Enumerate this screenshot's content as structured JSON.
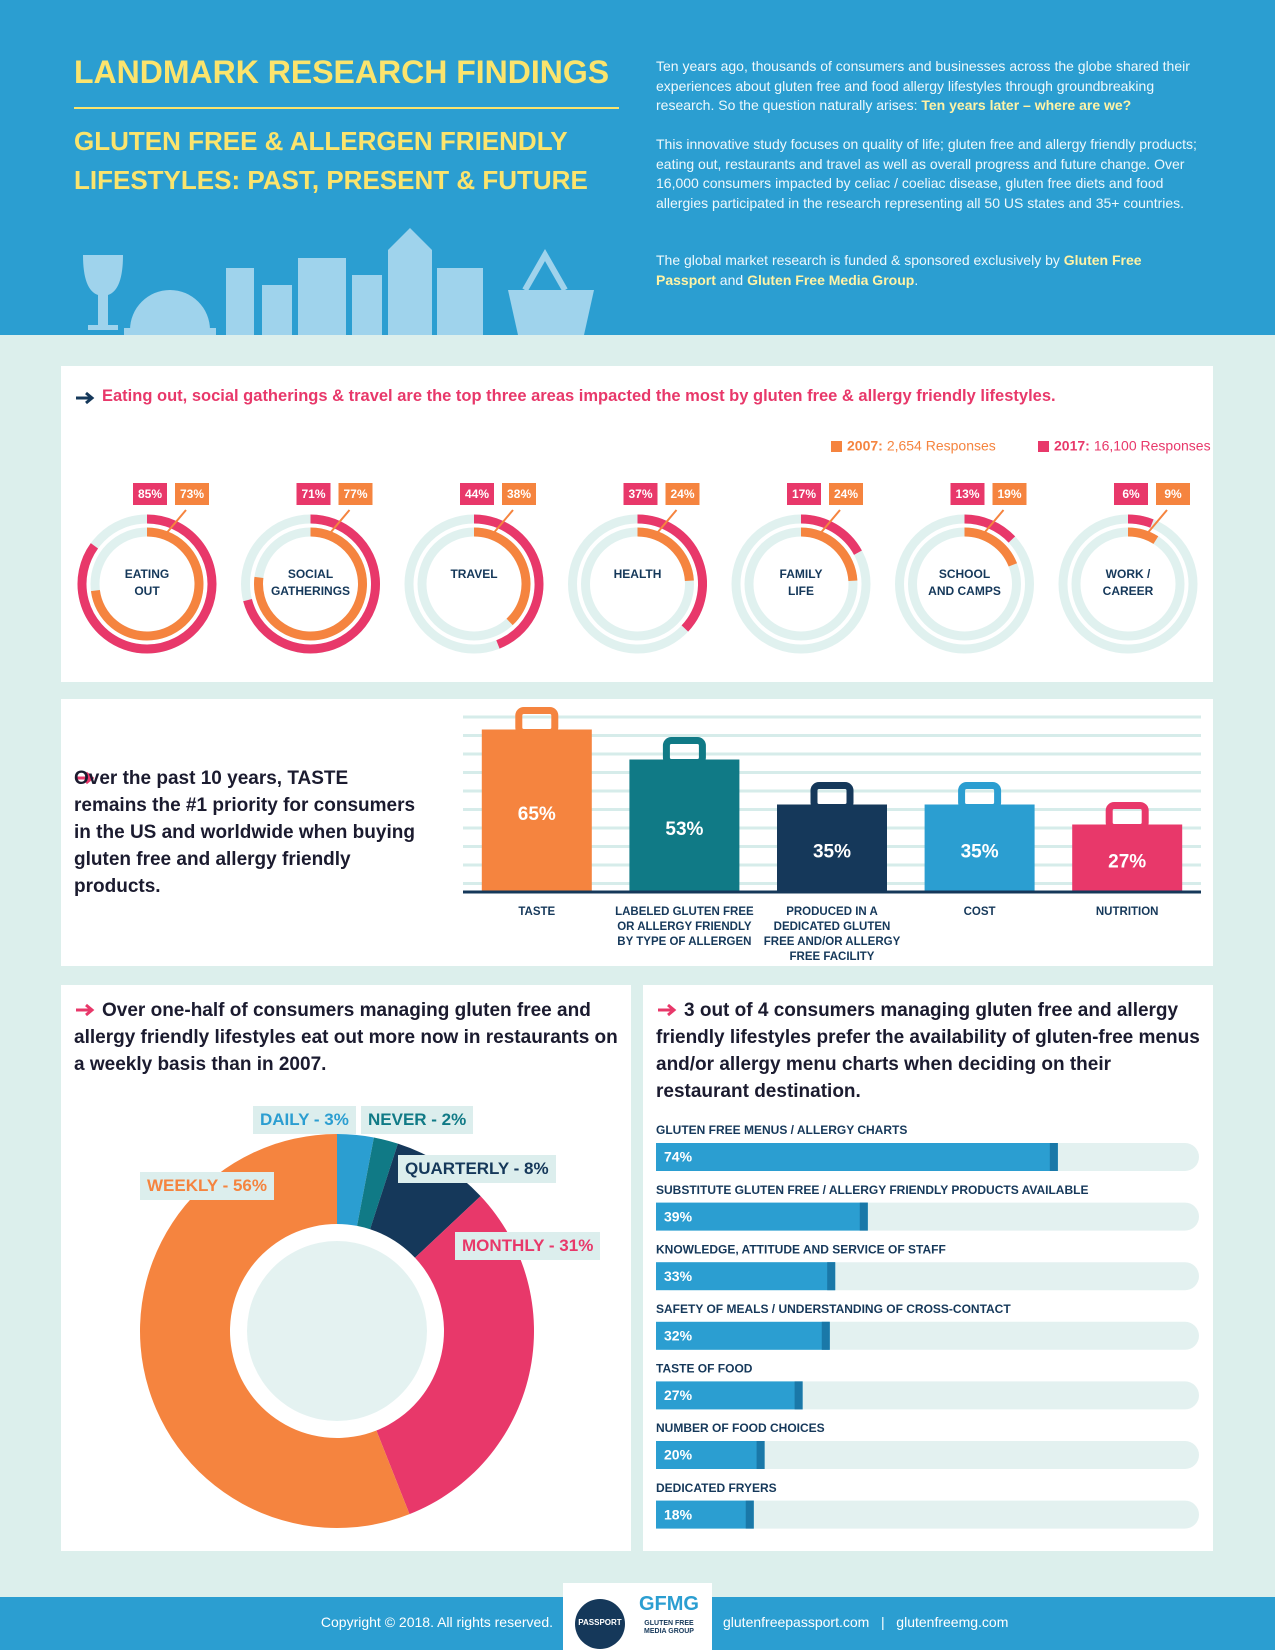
{
  "header": {
    "title": "LANDMARK RESEARCH FINDINGS",
    "subtitle": "GLUTEN FREE & ALLERGEN FRIENDLY LIFESTYLES: PAST, PRESENT & FUTURE",
    "paragraphs": [
      [
        "Ten years ago, thousands of consumers and businesses across the globe shared their experiences about gluten free and food allergy lifestyles through groundbreaking research. So the question naturally arises: ",
        "Ten years later – where are we?"
      ],
      [
        "This innovative study focuses on quality of life; gluten free and allergy friendly products; eating out, restaurants and travel as well as overall progress and future change. Over 16,000 consumers impacted by celiac / coeliac disease, gluten free diets and food allergies participated in the research representing all 50 US states and 35+ countries."
      ],
      [
        "The global market research is funded & sponsored exclusively by ",
        "Gluten Free Passport",
        " and ",
        "Gluten Free Media Group",
        "."
      ]
    ]
  },
  "chart_data": [
    {
      "type": "radial",
      "title": "Eating out, social gatherings & travel are the top three areas impacted the most by gluten free & allergy friendly lifestyles.",
      "categories": [
        "EATING\nOUT",
        "SOCIAL\nGATHERINGS",
        "TRAVEL",
        "HEALTH",
        "FAMILY\nLIFE",
        "SCHOOL\nAND CAMPS",
        "WORK /\nCAREER"
      ],
      "series": [
        {
          "name": "2007:",
          "responses": "2,654 Responses",
          "color": "#f5843f",
          "values": [
            73,
            77,
            38,
            24,
            24,
            19,
            9
          ],
          "value_labels": [
            "73%",
            "77%",
            "38%",
            "24%",
            "24%",
            "19%",
            "9%"
          ]
        },
        {
          "name": "2017:",
          "responses": "16,100 Responses",
          "color": "#e8386a",
          "values": [
            85,
            71,
            44,
            37,
            17,
            13,
            6
          ],
          "value_labels": [
            "85%",
            "71%",
            "44%",
            "37%",
            "17%",
            "13%",
            "6%"
          ]
        }
      ]
    },
    {
      "type": "bar",
      "title": "Over the past 10 years, TASTE remains the #1 priority for consumers in the US and worldwide when buying gluten free and allergy friendly products.",
      "categories": [
        "TASTE",
        "LABELED GLUTEN FREE OR ALLERGY FRIENDLY BY TYPE OF ALLERGEN",
        "PRODUCED IN A DEDICATED GLUTEN FREE AND/OR ALLERGY FREE FACILITY",
        "COST",
        "NUTRITION"
      ],
      "values": [
        65,
        53,
        35,
        35,
        27
      ],
      "value_labels": [
        "65%",
        "53%",
        "35%",
        "35%",
        "27%"
      ],
      "colors": [
        "#f5843f",
        "#107a86",
        "#15385a",
        "#2b9ed1",
        "#e8386a"
      ],
      "ylim": [
        0,
        70
      ]
    },
    {
      "type": "donut",
      "title": "Over one-half of consumers managing gluten free and allergy friendly lifestyles eat out more now in restaurants on a weekly basis than in 2007.",
      "values": [
        3,
        2,
        8,
        31,
        56
      ],
      "value_labels": [
        "DAILY - 3%",
        "NEVER - 2%",
        "QUARTERLY - 8%",
        "MONTHLY - 31%",
        "WEEKLY - 56%"
      ],
      "colors": [
        "#2b9ed1",
        "#107a86",
        "#15385a",
        "#e8386a",
        "#f5843f"
      ]
    },
    {
      "type": "progress",
      "title": "3 out of 4 consumers managing gluten free and allergy friendly lifestyles prefer the availability of gluten-free menus and/or allergy menu charts when deciding on their restaurant destination.",
      "categories": [
        "GLUTEN FREE MENUS / ALLERGY CHARTS",
        "SUBSTITUTE GLUTEN FREE / ALLERGY FRIENDLY PRODUCTS AVAILABLE",
        "KNOWLEDGE, ATTITUDE AND SERVICE OF STAFF",
        "SAFETY OF MEALS / UNDERSTANDING OF CROSS-CONTACT",
        "TASTE OF FOOD",
        "NUMBER OF FOOD CHOICES",
        "DEDICATED FRYERS"
      ],
      "values": [
        74,
        39,
        33,
        32,
        27,
        20,
        18
      ],
      "value_labels": [
        "74%",
        "39%",
        "33%",
        "32%",
        "27%",
        "20%",
        "18%"
      ],
      "color": "#2b9ed1",
      "xlim": [
        0,
        100
      ]
    }
  ],
  "footer": {
    "copyright": "Copyright © 2018. All rights reserved.",
    "links": [
      "glutenfreepassport.com",
      "glutenfreemg.com"
    ],
    "separator": "|",
    "logos": [
      "PASSPORT",
      "GFMG",
      "GLUTEN FREE MEDIA GROUP"
    ]
  }
}
